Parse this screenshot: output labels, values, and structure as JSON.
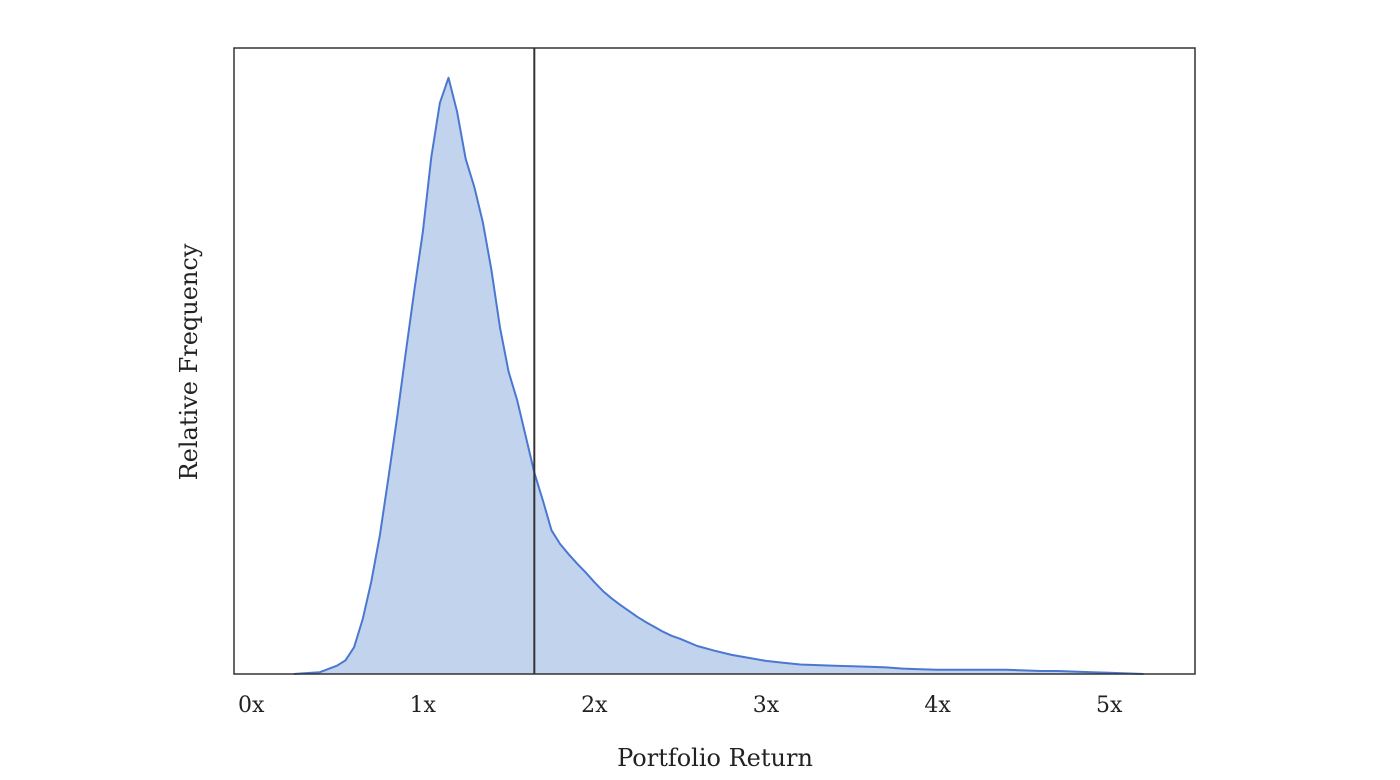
{
  "chart_data": {
    "type": "area",
    "title": "",
    "xlabel": "Portfolio Return",
    "ylabel": "Relative Frequency",
    "xlim": [
      -0.1,
      5.5
    ],
    "ylim": [
      0,
      1.05
    ],
    "x_ticks": [
      0,
      1,
      2,
      3,
      4,
      5
    ],
    "x_tick_labels": [
      "0x",
      "1x",
      "2x",
      "3x",
      "4x",
      "5x"
    ],
    "y_tick_labels": [],
    "grid": false,
    "legend": "none",
    "reference_line": {
      "x": 1.65
    },
    "colors": {
      "fill": "#c2d3ee",
      "line": "#4a78d0",
      "reference": "#333333",
      "frame": "#333333"
    },
    "series": [
      {
        "x": [
          0.25,
          0.3,
          0.4,
          0.5,
          0.55,
          0.6,
          0.65,
          0.7,
          0.75,
          0.8,
          0.85,
          0.9,
          0.95,
          1.0,
          1.05,
          1.1,
          1.15,
          1.2,
          1.25,
          1.3,
          1.35,
          1.4,
          1.45,
          1.5,
          1.55,
          1.6,
          1.65,
          1.7,
          1.75,
          1.8,
          1.85,
          1.9,
          1.95,
          2.0,
          2.05,
          2.1,
          2.15,
          2.2,
          2.25,
          2.3,
          2.35,
          2.4,
          2.45,
          2.5,
          2.6,
          2.7,
          2.8,
          2.9,
          3.0,
          3.1,
          3.2,
          3.3,
          3.4,
          3.5,
          3.6,
          3.7,
          3.8,
          3.9,
          4.0,
          4.1,
          4.2,
          4.3,
          4.4,
          4.5,
          4.6,
          4.7,
          4.8,
          4.9,
          5.0,
          5.1,
          5.2
        ],
        "y": [
          0.0,
          0.001,
          0.003,
          0.014,
          0.023,
          0.045,
          0.092,
          0.155,
          0.233,
          0.329,
          0.429,
          0.537,
          0.642,
          0.741,
          0.867,
          0.958,
          1.0,
          0.943,
          0.864,
          0.817,
          0.758,
          0.678,
          0.581,
          0.507,
          0.459,
          0.399,
          0.338,
          0.291,
          0.241,
          0.218,
          0.201,
          0.185,
          0.17,
          0.154,
          0.139,
          0.127,
          0.116,
          0.106,
          0.096,
          0.087,
          0.079,
          0.071,
          0.064,
          0.059,
          0.047,
          0.039,
          0.032,
          0.027,
          0.022,
          0.019,
          0.016,
          0.015,
          0.014,
          0.013,
          0.012,
          0.011,
          0.009,
          0.008,
          0.007,
          0.007,
          0.007,
          0.007,
          0.007,
          0.006,
          0.005,
          0.005,
          0.004,
          0.003,
          0.002,
          0.001,
          0.0
        ]
      }
    ]
  }
}
